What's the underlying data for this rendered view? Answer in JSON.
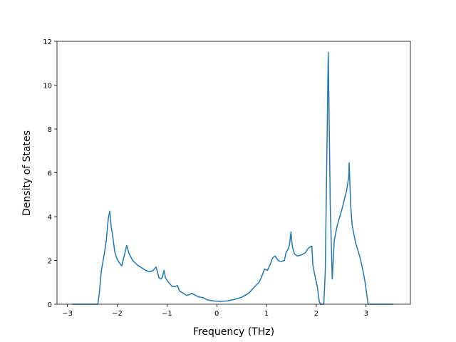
{
  "chart_data": {
    "type": "line",
    "x_label": "Frequency (THz)",
    "y_label": "Density of States",
    "xlim": [
      -3.21,
      3.89
    ],
    "ylim": [
      0,
      12
    ],
    "xticks": [
      {
        "value": -3,
        "label": "−3"
      },
      {
        "value": -2,
        "label": "−2"
      },
      {
        "value": -1,
        "label": "−1"
      },
      0,
      1,
      2,
      3
    ],
    "yticks": [
      0,
      2,
      4,
      6,
      8,
      10,
      12
    ],
    "grid": false,
    "series": [
      {
        "color": "#1f77b4",
        "x": [
          -2.91,
          -2.39,
          -2.36,
          -2.32,
          -2.26,
          -2.22,
          -2.18,
          -2.15,
          -2.12,
          -2.09,
          -2.05,
          -2.01,
          -1.96,
          -1.91,
          -1.86,
          -1.81,
          -1.76,
          -1.69,
          -1.6,
          -1.5,
          -1.43,
          -1.36,
          -1.29,
          -1.22,
          -1.16,
          -1.12,
          -1.09,
          -1.06,
          -1.03,
          -0.97,
          -0.9,
          -0.85,
          -0.79,
          -0.75,
          -0.67,
          -0.6,
          -0.54,
          -0.5,
          -0.44,
          -0.36,
          -0.27,
          -0.19,
          -0.07,
          0.07,
          0.21,
          0.36,
          0.5,
          0.64,
          0.76,
          0.85,
          0.9,
          0.96,
          1.02,
          1.07,
          1.12,
          1.17,
          1.23,
          1.29,
          1.36,
          1.39,
          1.43,
          1.46,
          1.49,
          1.52,
          1.56,
          1.62,
          1.7,
          1.78,
          1.82,
          1.86,
          1.91,
          1.93,
          1.98,
          2.02,
          2.06,
          2.09,
          2.15,
          2.18,
          2.24,
          2.28,
          2.32,
          2.36,
          2.42,
          2.51,
          2.61,
          2.65,
          2.66,
          2.69,
          2.72,
          2.79,
          2.87,
          2.94,
          2.98,
          3.04,
          3.55
        ],
        "values": [
          0,
          0,
          0.5,
          1.5,
          2.3,
          2.9,
          3.9,
          4.25,
          3.5,
          3.1,
          2.4,
          2.1,
          1.9,
          1.75,
          2.2,
          2.68,
          2.3,
          2.0,
          1.8,
          1.65,
          1.55,
          1.48,
          1.52,
          1.7,
          1.2,
          1.15,
          1.25,
          1.55,
          1.2,
          1.0,
          0.82,
          0.8,
          0.85,
          0.6,
          0.5,
          0.4,
          0.45,
          0.5,
          0.42,
          0.33,
          0.3,
          0.2,
          0.15,
          0.13,
          0.15,
          0.22,
          0.32,
          0.5,
          0.8,
          1.0,
          1.25,
          1.6,
          1.55,
          1.8,
          2.1,
          2.2,
          2.0,
          1.95,
          2.0,
          2.35,
          2.5,
          2.7,
          3.3,
          2.6,
          2.3,
          2.2,
          2.25,
          2.35,
          2.5,
          2.6,
          2.65,
          1.8,
          1.2,
          0.8,
          0.1,
          0,
          0,
          1.5,
          11.5,
          4.5,
          1.15,
          2.9,
          3.6,
          4.3,
          5.2,
          5.8,
          6.45,
          4.5,
          3.6,
          2.8,
          2.2,
          1.5,
          1.0,
          0,
          0
        ]
      }
    ]
  }
}
